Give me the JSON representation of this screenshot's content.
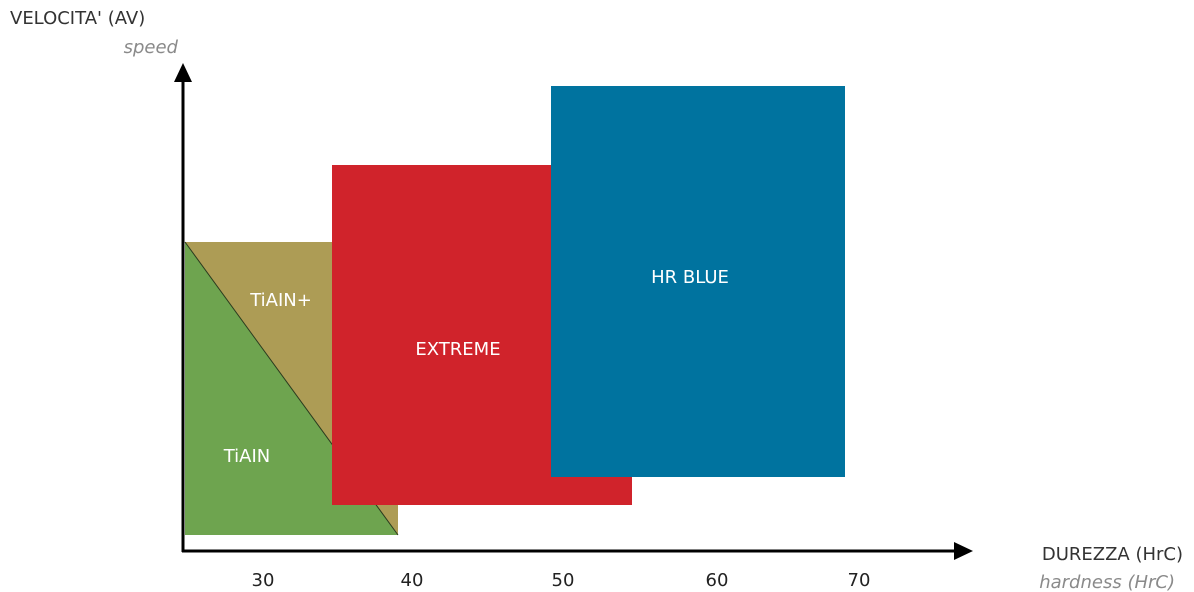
{
  "chart_data": {
    "type": "area",
    "y_axis": {
      "label": "VELOCITA' (AV)",
      "sublabel": "speed"
    },
    "x_axis": {
      "label": "DUREZZA (HrC)",
      "sublabel": "hardness (HrC)",
      "ticks": [
        30,
        40,
        50,
        60,
        70
      ]
    },
    "regions": [
      {
        "name": "TiAIN",
        "color": "#6ea44f",
        "shape": "triangle"
      },
      {
        "name": "TiAIN+",
        "color": "#ad9c55",
        "shape": "triangle"
      },
      {
        "name": "EXTREME",
        "color": "#d0232b",
        "shape": "rect"
      },
      {
        "name": "HR BLUE",
        "color": "#00739f",
        "shape": "rect"
      }
    ]
  }
}
